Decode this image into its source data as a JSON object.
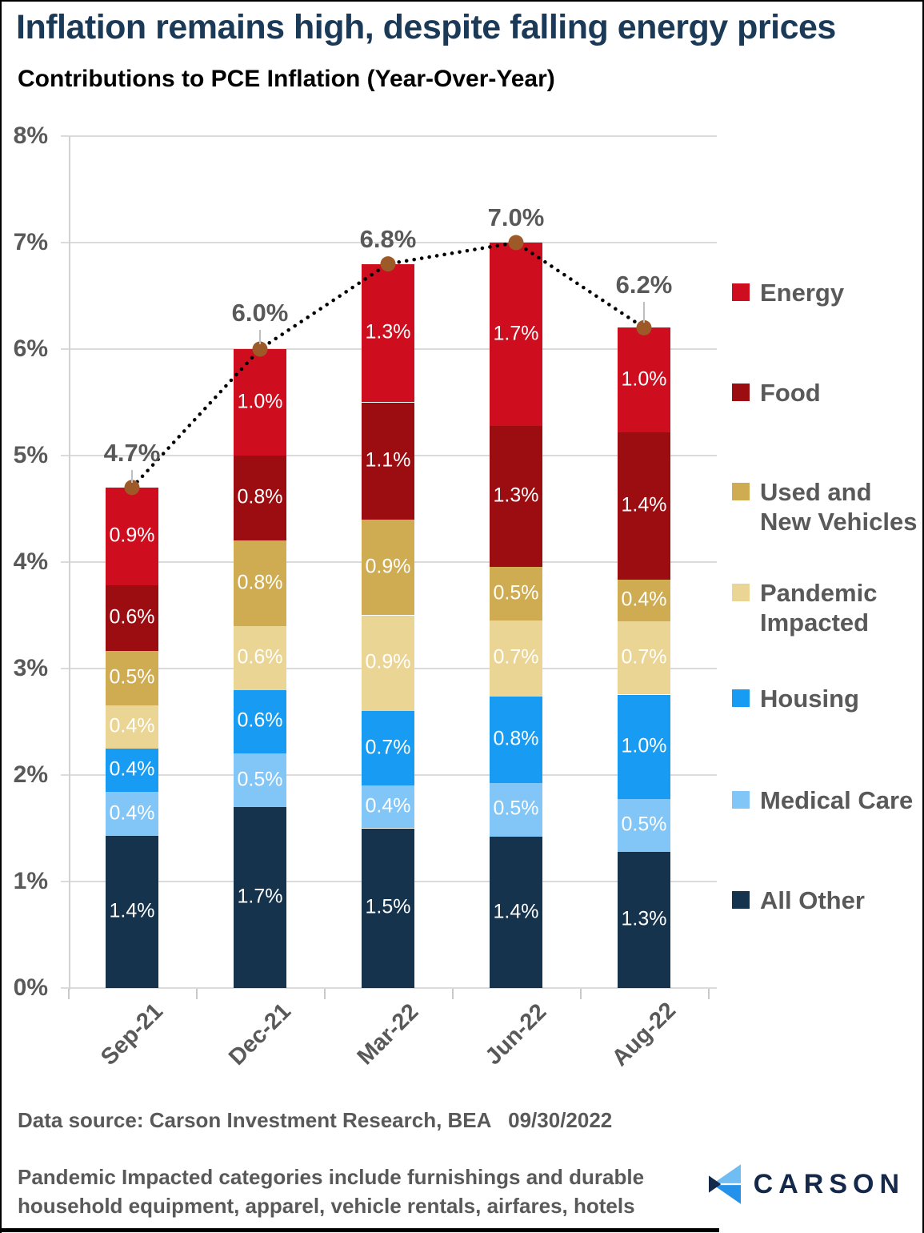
{
  "header": {
    "title": "Inflation remains high, despite falling energy prices",
    "subtitle": "Contributions to PCE Inflation (Year-Over-Year)"
  },
  "footer": {
    "source": "Data source: Carson Investment Research, BEA   09/30/2022",
    "footnote": "Pandemic Impacted categories include furnishings and durable\nhousehold equipment, apparel, vehicle rentals, airfares, hotels",
    "logo_text": "CARSON"
  },
  "colors": {
    "title": "#1B3A58",
    "axis_text": "#595959",
    "grid": "#DBDBDB",
    "trend_line": "#000000",
    "trend_marker": "#9D5A28",
    "leader_line": "#BFBFBF",
    "logo_navy": "#14294A",
    "logo_light_blue": "#6FBDF2",
    "logo_blue": "#2492EB"
  },
  "chart_data": {
    "type": "bar",
    "stacked": true,
    "title": "Contributions to PCE Inflation (Year-Over-Year)",
    "categories": [
      "Sep-21",
      "Dec-21",
      "Mar-22",
      "Jun-22",
      "Aug-22"
    ],
    "series": [
      {
        "name": "All Other",
        "color": "#16334E",
        "values": [
          1.4,
          1.7,
          1.5,
          1.4,
          1.3
        ]
      },
      {
        "name": "Medical Care",
        "color": "#82C6F8",
        "values": [
          0.4,
          0.5,
          0.4,
          0.5,
          0.5
        ]
      },
      {
        "name": "Housing",
        "color": "#189CF3",
        "values": [
          0.4,
          0.6,
          0.7,
          0.8,
          1.0
        ]
      },
      {
        "name": "Pandemic Impacted",
        "color": "#EAD595",
        "values": [
          0.4,
          0.6,
          0.9,
          0.7,
          0.7
        ]
      },
      {
        "name": "Used and New Vehicles",
        "color": "#CFAC51",
        "values": [
          0.5,
          0.8,
          0.9,
          0.5,
          0.4
        ]
      },
      {
        "name": "Food",
        "color": "#9C0D12",
        "values": [
          0.6,
          0.8,
          1.1,
          1.3,
          1.4
        ]
      },
      {
        "name": "Energy",
        "color": "#CE0E1E",
        "values": [
          0.9,
          1.0,
          1.3,
          1.7,
          1.0
        ]
      }
    ],
    "totals": [
      4.7,
      6.0,
      6.8,
      7.0,
      6.2
    ],
    "y_ticks": [
      "0%",
      "1%",
      "2%",
      "3%",
      "4%",
      "5%",
      "6%",
      "7%",
      "8%"
    ],
    "ylim": [
      0,
      8
    ],
    "grid": true,
    "value_suffix": "%",
    "legend_position": "right",
    "total_line_style": "dotted-with-markers"
  },
  "legend": {
    "items": [
      {
        "label": "Energy",
        "color": "#CE0E1E"
      },
      {
        "label": "Food",
        "color": "#9C0D12"
      },
      {
        "label": "Used and\nNew Vehicles",
        "color": "#CFAC51"
      },
      {
        "label": "Pandemic\nImpacted",
        "color": "#EAD595"
      },
      {
        "label": "Housing",
        "color": "#189CF3"
      },
      {
        "label": "Medical Care",
        "color": "#82C6F8"
      },
      {
        "label": "All Other",
        "color": "#16334E"
      }
    ]
  }
}
